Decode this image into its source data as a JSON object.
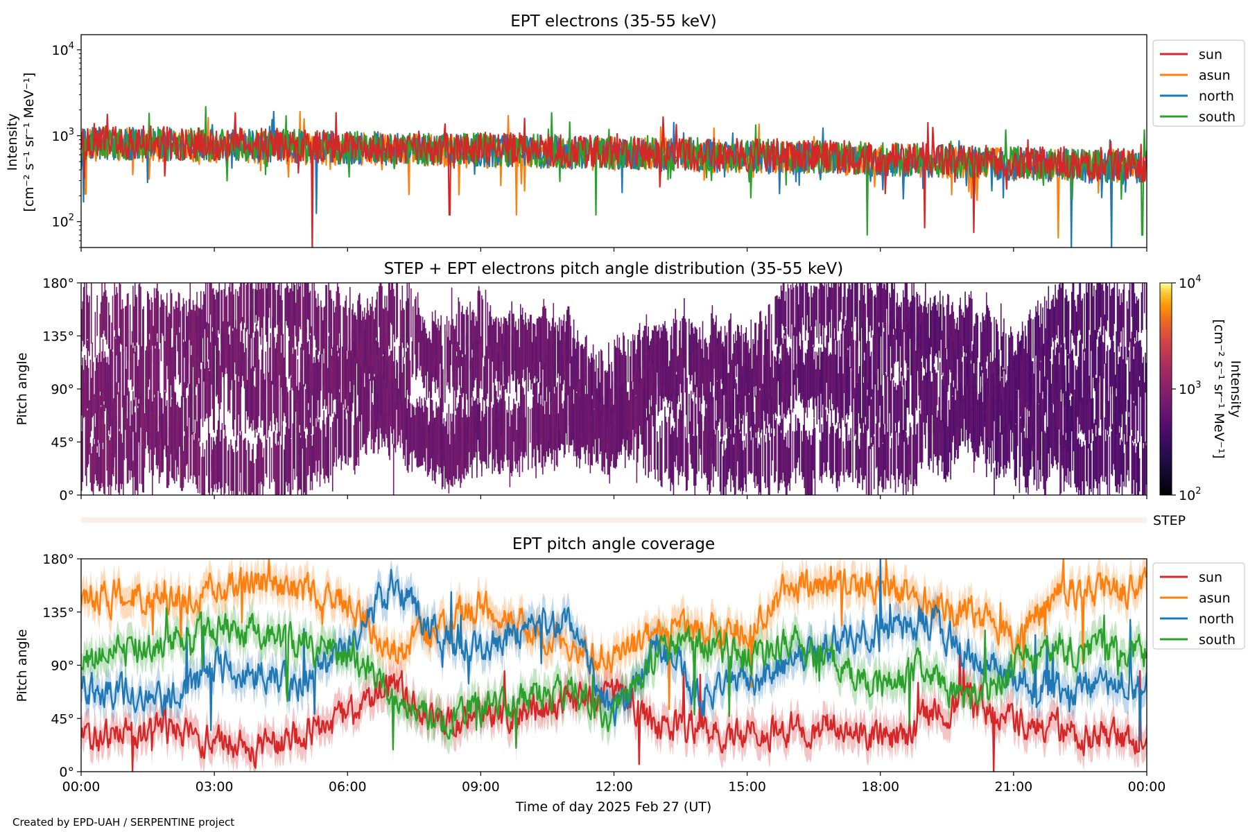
{
  "credit": "Created by EPD-UAH / SERPENTINE project",
  "xlabel": "Time of day 2025 Feb 27 (UT)",
  "time_ticks": [
    "00:00",
    "03:00",
    "06:00",
    "09:00",
    "12:00",
    "15:00",
    "18:00",
    "21:00",
    "00:00"
  ],
  "colors": {
    "sun": "#d62728",
    "asun": "#ff7f0e",
    "north": "#1f77b4",
    "south": "#2ca02c"
  },
  "chart_data": [
    {
      "type": "line",
      "title": "EPT electrons (35-55 keV)",
      "ylabel_line1": "Intensity",
      "ylabel_line2": "[cm⁻² s⁻¹ sr⁻¹ MeV⁻¹]",
      "yscale": "log",
      "ylim": [
        50,
        15000
      ],
      "yticks": [
        {
          "value": 100,
          "base": "10",
          "exp": "2"
        },
        {
          "value": 1000,
          "base": "10",
          "exp": "3"
        },
        {
          "value": 10000,
          "base": "10",
          "exp": "4"
        }
      ],
      "xlim_hours": [
        0,
        24
      ],
      "legend": [
        "sun",
        "asun",
        "north",
        "south"
      ],
      "legend_loc": "outside right",
      "series": [
        {
          "name": "sun",
          "level_start": 850,
          "level_end": 450,
          "dips": [
            [
              5.2,
              45
            ],
            [
              8.3,
              120
            ],
            [
              19.0,
              85
            ],
            [
              20.1,
              75
            ]
          ]
        },
        {
          "name": "asun",
          "level_start": 800,
          "level_end": 430,
          "dips": [
            [
              0.1,
              210
            ],
            [
              9.8,
              120
            ],
            [
              22.0,
              65
            ]
          ]
        },
        {
          "name": "north",
          "level_start": 820,
          "level_end": 420,
          "dips": [
            [
              0.05,
              170
            ],
            [
              5.3,
              125
            ],
            [
              22.3,
              50
            ],
            [
              23.2,
              50
            ]
          ]
        },
        {
          "name": "south",
          "level_start": 830,
          "level_end": 440,
          "dips": [
            [
              11.6,
              120
            ],
            [
              17.7,
              70
            ],
            [
              23.9,
              70
            ]
          ]
        }
      ]
    },
    {
      "type": "heatmap",
      "title": "STEP + EPT electrons pitch angle distribution (35-55 keV)",
      "ylabel": "Pitch angle",
      "yticks": [
        "0°",
        "45°",
        "90°",
        "135°",
        "180°"
      ],
      "ylim": [
        0,
        180
      ],
      "colorbar": {
        "label_line1": "Intensity",
        "label_line2": "[cm⁻² s⁻¹ sr⁻¹ MeV⁻¹]",
        "scale": "log",
        "range": [
          100,
          10000
        ],
        "ticks": [
          {
            "base": "10",
            "exp": "2"
          },
          {
            "base": "10",
            "exp": "3"
          },
          {
            "base": "10",
            "exp": "4"
          }
        ],
        "colormap": "inferno"
      },
      "typical_intensity_start": 800,
      "typical_intensity_end": 450,
      "step_label": "STEP"
    },
    {
      "type": "line",
      "title": "EPT pitch angle coverage",
      "ylabel": "Pitch angle",
      "yticks": [
        "0°",
        "45°",
        "90°",
        "135°",
        "180°"
      ],
      "ylim": [
        0,
        180
      ],
      "xlim_hours": [
        0,
        24
      ],
      "legend": [
        "sun",
        "asun",
        "north",
        "south"
      ],
      "legend_loc": "outside right",
      "series": [
        {
          "name": "sun",
          "anchors": [
            [
              0,
              30
            ],
            [
              2,
              35
            ],
            [
              4,
              20
            ],
            [
              6,
              45
            ],
            [
              7,
              80
            ],
            [
              8,
              40
            ],
            [
              10,
              50
            ],
            [
              11,
              60
            ],
            [
              12,
              70
            ],
            [
              13,
              40
            ],
            [
              15,
              30
            ],
            [
              17,
              40
            ],
            [
              18,
              25
            ],
            [
              20,
              60
            ],
            [
              21,
              40
            ],
            [
              22,
              35
            ],
            [
              24,
              25
            ]
          ]
        },
        {
          "name": "asun",
          "anchors": [
            [
              0,
              150
            ],
            [
              2,
              145
            ],
            [
              4,
              160
            ],
            [
              6,
              145
            ],
            [
              7,
              100
            ],
            [
              8,
              120
            ],
            [
              9,
              140
            ],
            [
              10,
              125
            ],
            [
              11,
              105
            ],
            [
              12,
              95
            ],
            [
              13,
              120
            ],
            [
              14,
              120
            ],
            [
              15,
              120
            ],
            [
              16,
              160
            ],
            [
              18,
              155
            ],
            [
              20,
              135
            ],
            [
              21,
              115
            ],
            [
              22,
              150
            ],
            [
              24,
              155
            ]
          ]
        },
        {
          "name": "north",
          "anchors": [
            [
              0,
              70
            ],
            [
              2,
              60
            ],
            [
              3,
              90
            ],
            [
              5,
              75
            ],
            [
              6,
              105
            ],
            [
              7,
              160
            ],
            [
              8,
              115
            ],
            [
              9,
              105
            ],
            [
              10,
              120
            ],
            [
              11,
              125
            ],
            [
              12,
              45
            ],
            [
              13,
              110
            ],
            [
              14,
              60
            ],
            [
              16,
              90
            ],
            [
              17,
              110
            ],
            [
              18,
              120
            ],
            [
              19,
              130
            ],
            [
              20,
              100
            ],
            [
              21,
              75
            ],
            [
              22,
              70
            ],
            [
              24,
              75
            ]
          ]
        },
        {
          "name": "south",
          "anchors": [
            [
              0,
              95
            ],
            [
              2,
              110
            ],
            [
              3,
              125
            ],
            [
              5,
              105
            ],
            [
              6,
              100
            ],
            [
              7,
              70
            ],
            [
              8,
              40
            ],
            [
              9,
              55
            ],
            [
              10,
              60
            ],
            [
              11,
              65
            ],
            [
              12,
              50
            ],
            [
              13,
              100
            ],
            [
              14,
              110
            ],
            [
              15,
              95
            ],
            [
              16,
              110
            ],
            [
              17,
              90
            ],
            [
              18,
              70
            ],
            [
              19,
              90
            ],
            [
              20,
              55
            ],
            [
              21,
              90
            ],
            [
              22,
              105
            ],
            [
              24,
              100
            ]
          ]
        }
      ]
    }
  ]
}
